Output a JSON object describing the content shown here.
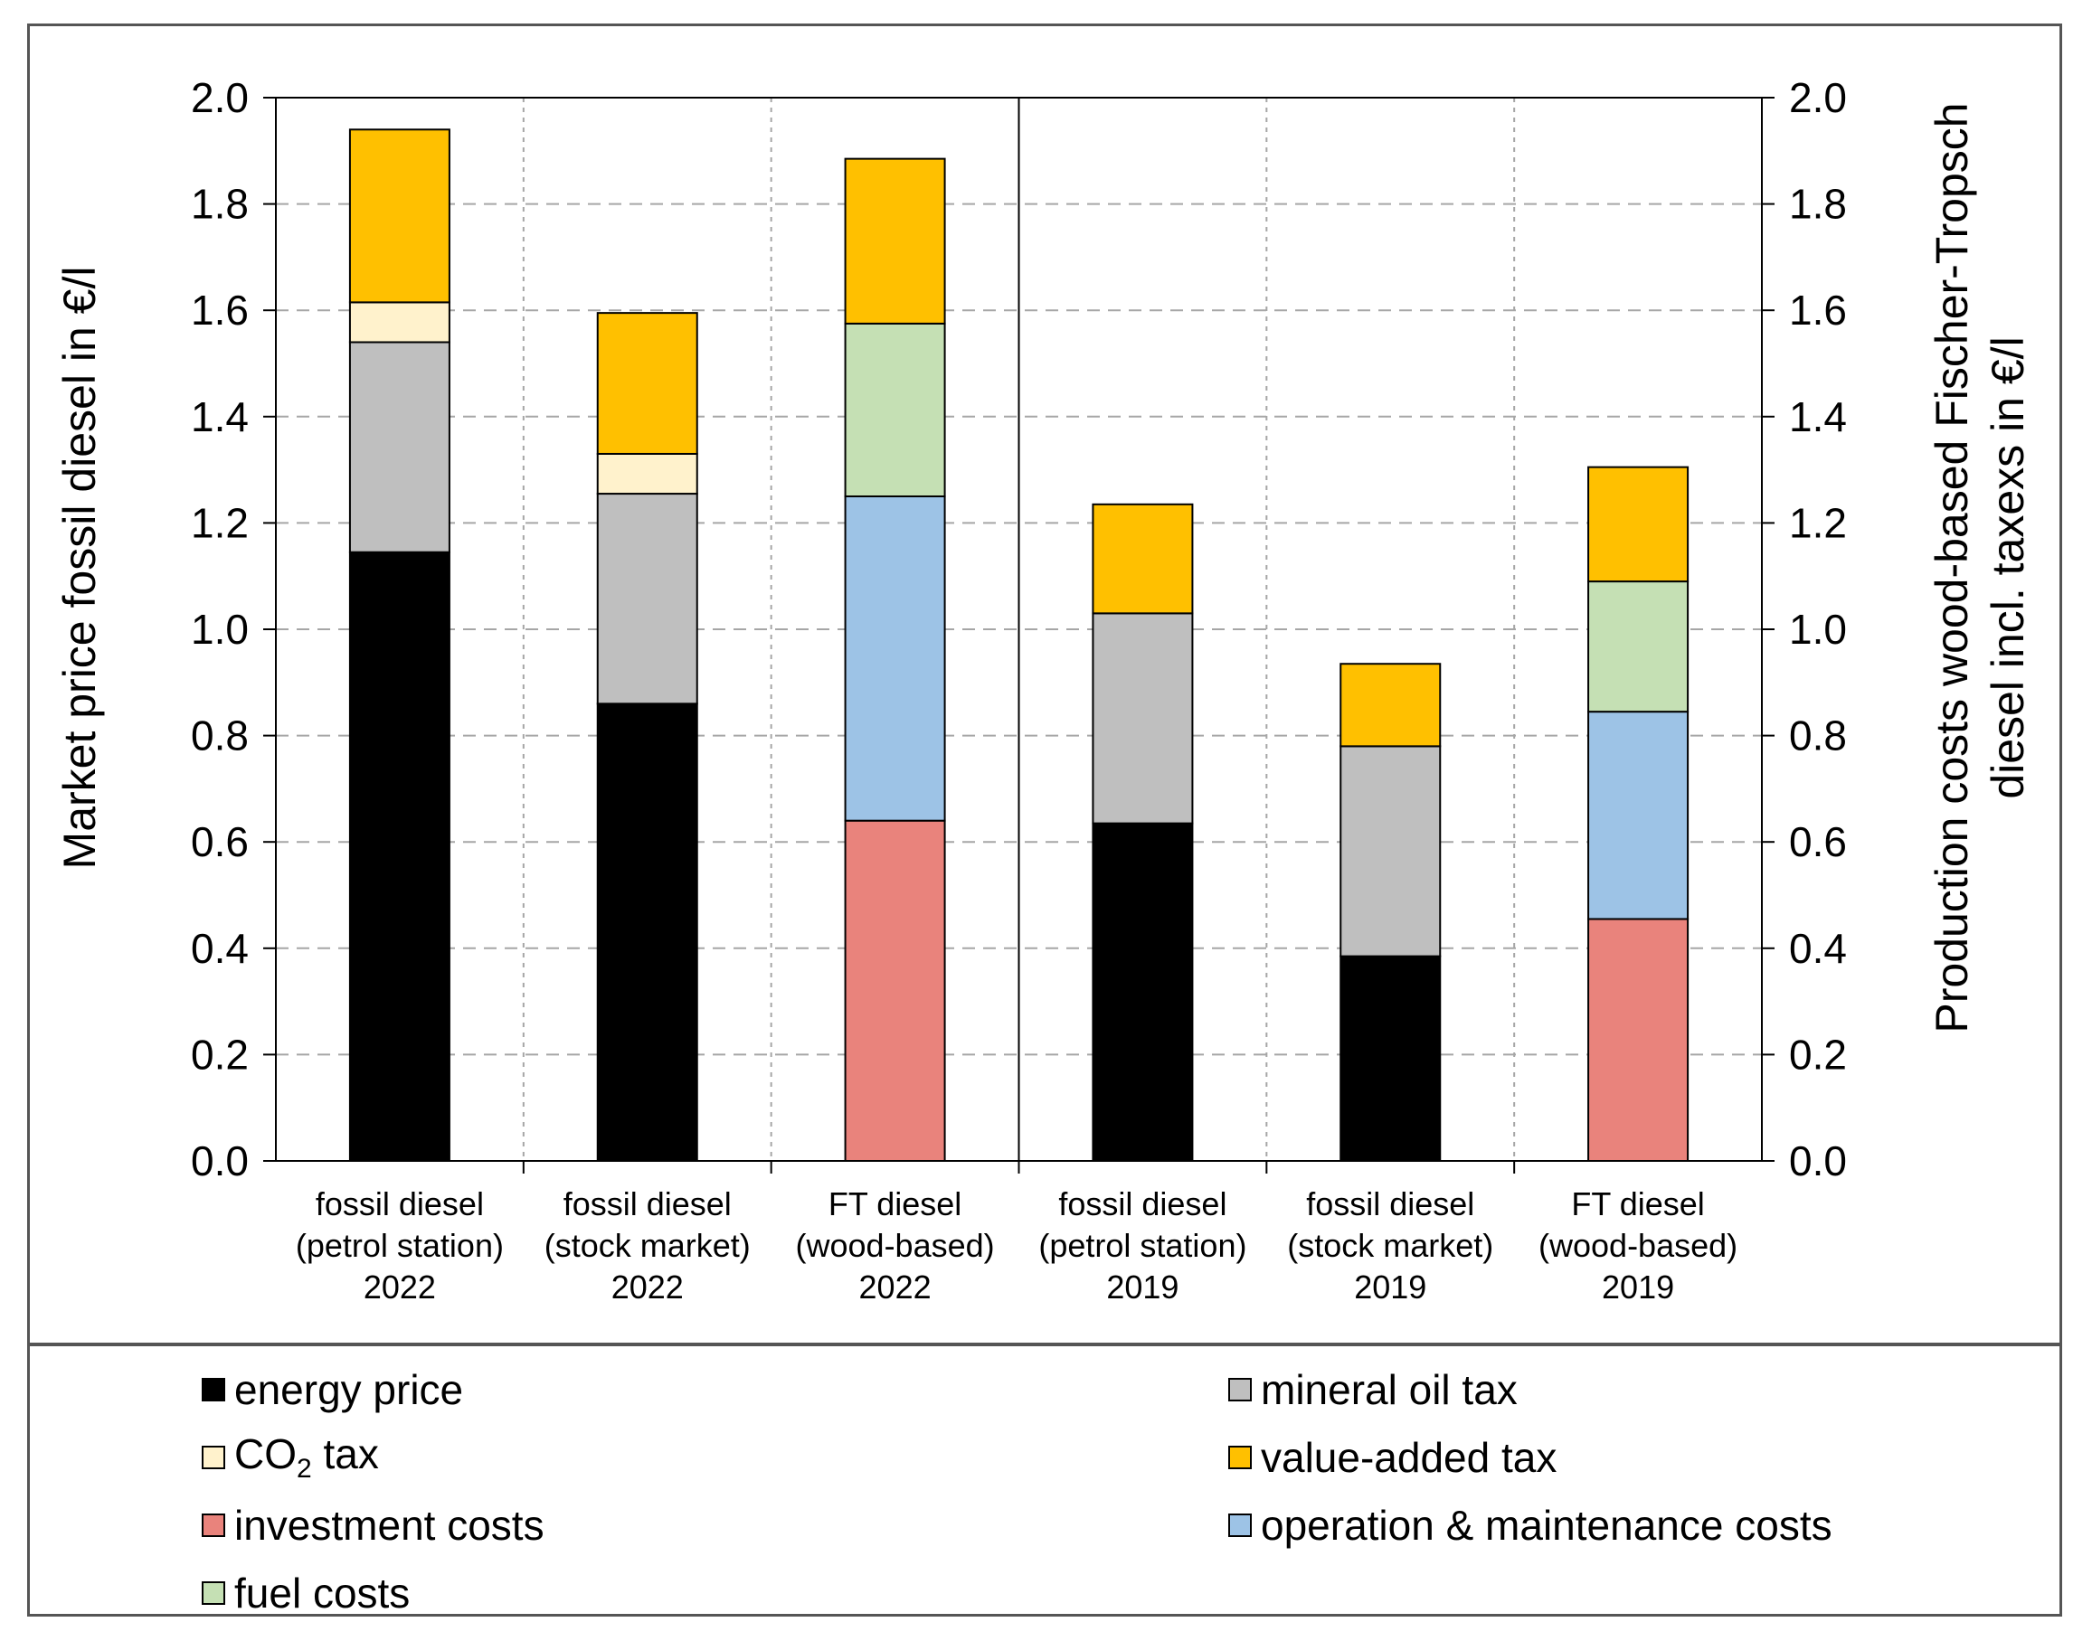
{
  "chart_data": {
    "type": "bar",
    "stacked": true,
    "categories": [
      [
        "fossil diesel",
        "(petrol station)",
        "2022"
      ],
      [
        "fossil diesel",
        "(stock market)",
        "2022"
      ],
      [
        "FT diesel",
        "(wood-based)",
        "2022"
      ],
      [
        "fossil diesel",
        "(petrol station)",
        "2019"
      ],
      [
        "fossil diesel",
        "(stock market)",
        "2019"
      ],
      [
        "FT diesel",
        "(wood-based)",
        "2019"
      ]
    ],
    "series": [
      {
        "name": "energy price",
        "color": "#000000",
        "values": [
          1.145,
          0.86,
          0,
          0.635,
          0.385,
          0
        ]
      },
      {
        "name": "mineral oil tax",
        "color": "#bfbfbf",
        "values": [
          0.395,
          0.395,
          0,
          0.395,
          0.395,
          0
        ]
      },
      {
        "name": "CO2 tax",
        "color": "#fff2cc",
        "values": [
          0.075,
          0.075,
          0,
          0,
          0,
          0
        ]
      },
      {
        "name": "investment costs",
        "color": "#e9837c",
        "values": [
          0,
          0,
          0.64,
          0,
          0,
          0.455
        ]
      },
      {
        "name": "operation & maintenance costs",
        "color": "#9dc3e6",
        "values": [
          0,
          0,
          0.61,
          0,
          0,
          0.39
        ]
      },
      {
        "name": "fuel costs",
        "color": "#c5e0b4",
        "values": [
          0,
          0,
          0.325,
          0,
          0,
          0.245
        ]
      },
      {
        "name": "value-added tax",
        "color": "#ffc000",
        "values": [
          0.325,
          0.265,
          0.31,
          0.205,
          0.155,
          0.215
        ]
      }
    ],
    "ylim": [
      0,
      2.0
    ],
    "yticks": [
      "0.0",
      "0.2",
      "0.4",
      "0.6",
      "0.8",
      "1.0",
      "1.2",
      "1.4",
      "1.6",
      "1.8",
      "2.0"
    ],
    "ylabel_left": "Market price fossil diesel in €/l",
    "ylabel_right_line1": "Production costs wood-based Fischer-Tropsch",
    "ylabel_right_line2": "diesel incl. taxexs in €/l",
    "grid": true,
    "divider_after_category": 3
  },
  "legend": {
    "energy_price": {
      "label": "energy price",
      "color": "#000000"
    },
    "mineral_oil_tax": {
      "label": "mineral oil tax",
      "color": "#bfbfbf"
    },
    "co2_tax": {
      "label_prefix": "CO",
      "label_sub": "2",
      "label_suffix": " tax",
      "color": "#fff2cc"
    },
    "value_added_tax": {
      "label": "value-added tax",
      "color": "#ffc000"
    },
    "investment_costs": {
      "label": "investment costs",
      "color": "#e9837c"
    },
    "operation_maintenance": {
      "label": "operation & maintenance costs",
      "color": "#9dc3e6"
    },
    "fuel_costs": {
      "label": "fuel costs",
      "color": "#c5e0b4"
    }
  }
}
